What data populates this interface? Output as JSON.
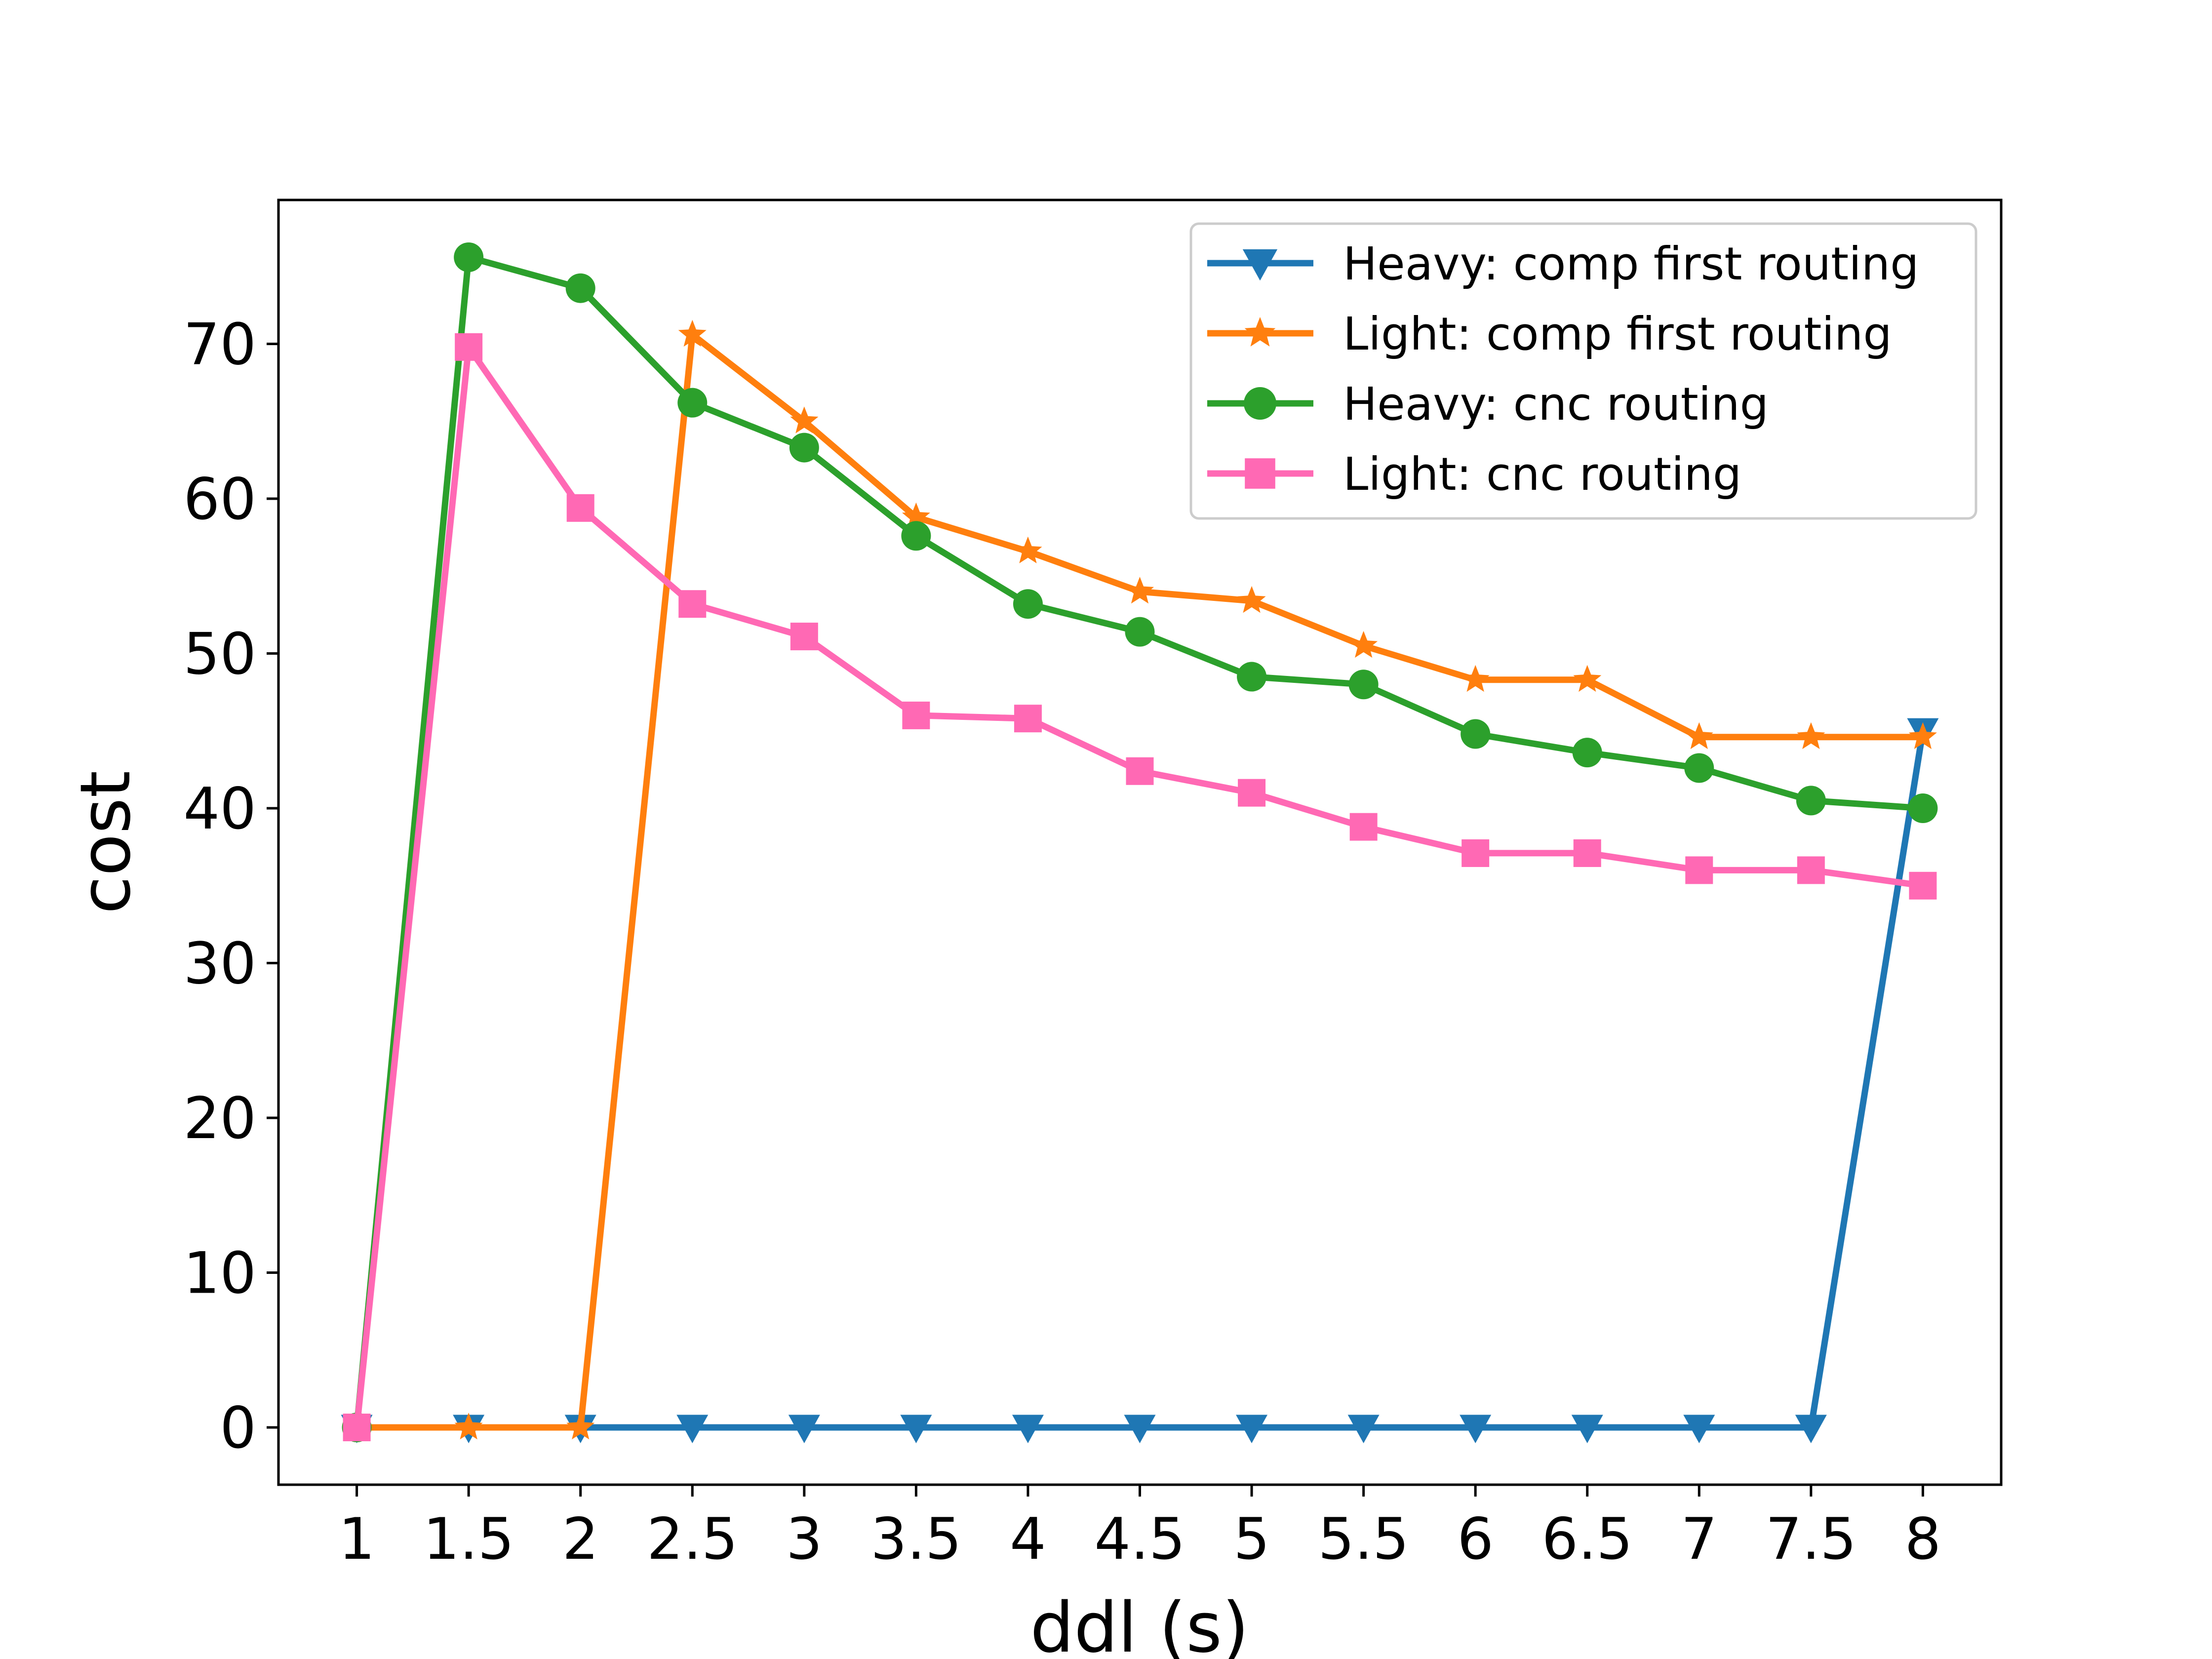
{
  "chart_data": {
    "type": "line",
    "title": "",
    "xlabel": "ddl (s)",
    "ylabel": "cost",
    "x": [
      1,
      1.5,
      2,
      2.5,
      3,
      3.5,
      4,
      4.5,
      5,
      5.5,
      6,
      6.5,
      7,
      7.5,
      8
    ],
    "xtick_labels": [
      "1",
      "1.5",
      "2",
      "2.5",
      "3",
      "3.5",
      "4",
      "4.5",
      "5",
      "5.5",
      "6",
      "6.5",
      "7",
      "7.5",
      "8"
    ],
    "yticks": [
      0,
      10,
      20,
      30,
      40,
      50,
      60,
      70
    ],
    "xlim": [
      0.65,
      8.35
    ],
    "ylim": [
      -3.7,
      79.3
    ],
    "grid": false,
    "legend_position": "top-right",
    "series": [
      {
        "name": "Heavy: comp first routing",
        "color": "#1f77b4",
        "marker": "triangle-down",
        "values": [
          0,
          0,
          0,
          0,
          0,
          0,
          0,
          0,
          0,
          0,
          0,
          0,
          0,
          0,
          45
        ]
      },
      {
        "name": "Light: comp first routing",
        "color": "#ff7f0e",
        "marker": "star",
        "values": [
          0,
          0,
          0,
          70.6,
          65.0,
          58.8,
          56.6,
          54.0,
          53.4,
          50.5,
          48.3,
          48.3,
          44.6,
          44.6,
          44.6
        ]
      },
      {
        "name": "Heavy: cnc routing",
        "color": "#2ca02c",
        "marker": "circle",
        "values": [
          0,
          75.6,
          73.6,
          66.2,
          63.3,
          57.6,
          53.2,
          51.4,
          48.5,
          48.0,
          44.8,
          43.6,
          42.6,
          40.5,
          40.0
        ]
      },
      {
        "name": "Light: cnc routing",
        "color": "#ff69b4",
        "marker": "square",
        "values": [
          0,
          69.8,
          59.4,
          53.2,
          51.1,
          46.0,
          45.8,
          42.4,
          41.0,
          38.8,
          37.1,
          37.1,
          36.0,
          36.0,
          35.0
        ]
      }
    ]
  }
}
